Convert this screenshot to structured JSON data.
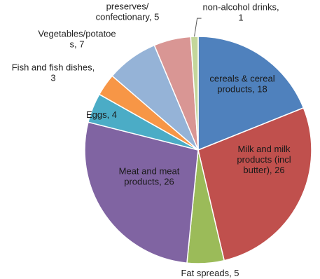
{
  "chart_data": {
    "type": "pie",
    "slices": [
      {
        "name": "cereals & cereal products",
        "value": 18,
        "color": "#4F81BD",
        "label": [
          "cereals & cereal",
          "products, 18"
        ]
      },
      {
        "name": "Milk and milk products (incl butter)",
        "value": 26,
        "color": "#C0504D",
        "label": [
          "Milk and milk",
          "products (incl",
          "butter), 26"
        ]
      },
      {
        "name": "Fat spreads",
        "value": 5,
        "color": "#9BBB59",
        "label": [
          "Fat spreads, 5"
        ]
      },
      {
        "name": "Meat and meat products",
        "value": 26,
        "color": "#8064A2",
        "label": [
          "Meat and meat",
          "products, 26"
        ]
      },
      {
        "name": "Eggs",
        "value": 4,
        "color": "#4BACC6",
        "label": [
          "Eggs, 4"
        ]
      },
      {
        "name": "Fish and fish dishes",
        "value": 3,
        "color": "#F79646",
        "label": [
          "Fish and fish dishes,",
          "3"
        ]
      },
      {
        "name": "Vegetables/potatoes",
        "value": 7,
        "color": "#95B3D7",
        "label": [
          "Vegetables/potatoe",
          "s, 7"
        ]
      },
      {
        "name": "preserves/confectionary",
        "value": 5,
        "color": "#D99694",
        "label": [
          "preserves/",
          "confectionary, 5"
        ]
      },
      {
        "name": "non-alcohol drinks",
        "value": 1,
        "color": "#C3D69B",
        "label": [
          "non-alcohol drinks,",
          "1"
        ]
      }
    ]
  }
}
